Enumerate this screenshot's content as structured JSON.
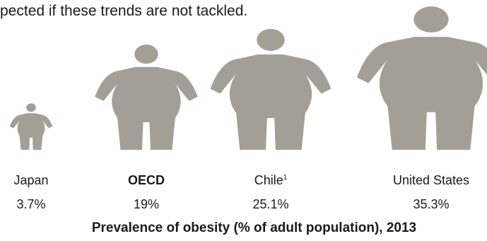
{
  "intro_text": "pected if these trends are not tackled.",
  "chart_data": {
    "type": "pictogram",
    "title": "Prevalence of obesity (% of adult population), 2013",
    "unit": "%",
    "colors": {
      "figure": "#a39f96"
    },
    "categories": [
      {
        "name": "Japan",
        "value": 3.7,
        "label": "3.7%",
        "bold": false,
        "footnote": ""
      },
      {
        "name": "OECD",
        "value": 19,
        "label": "19%",
        "bold": true,
        "footnote": ""
      },
      {
        "name": "Chile",
        "value": 25.1,
        "label": "25.1%",
        "bold": false,
        "footnote": "1"
      },
      {
        "name": "United States",
        "value": 35.3,
        "label": "35.3%",
        "bold": false,
        "footnote": ""
      }
    ]
  }
}
